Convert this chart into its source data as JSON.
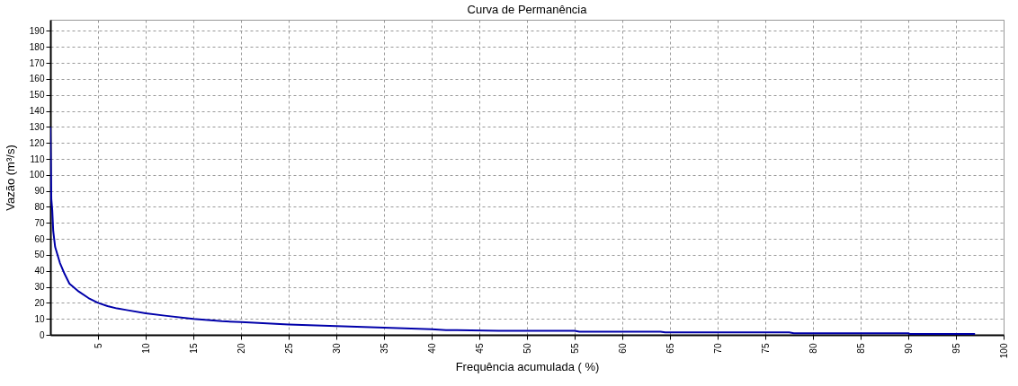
{
  "chart_data": {
    "type": "line",
    "title": "Curva de Permanência",
    "xlabel": "Frequência acumulada ( %)",
    "ylabel": "Vazão (m³/s)",
    "series": [
      {
        "color": "#0000aa",
        "x": [
          0,
          0.1,
          0.2,
          0.3,
          0.5,
          1,
          1.5,
          2,
          3,
          4,
          5,
          6,
          7,
          8,
          10,
          12,
          15,
          18,
          20,
          25,
          30,
          35,
          40,
          41.5,
          47,
          55,
          55.5,
          64,
          64.5,
          77.5,
          78,
          90,
          90.2,
          97
        ],
        "values": [
          130,
          85,
          78,
          65,
          55,
          45,
          38,
          32,
          27,
          23,
          20,
          18,
          16.5,
          15.5,
          13.5,
          12,
          10,
          8.5,
          8,
          6.5,
          5.5,
          4.5,
          3.5,
          3,
          2.5,
          2.5,
          2,
          2,
          1.5,
          1.5,
          1,
          1,
          0.5,
          0.5
        ]
      }
    ],
    "xlim": [
      0,
      100
    ],
    "ylim": [
      0,
      197
    ],
    "xticks": [
      5,
      10,
      15,
      20,
      25,
      30,
      35,
      40,
      45,
      50,
      55,
      60,
      65,
      70,
      75,
      80,
      85,
      90,
      95,
      100
    ],
    "yticks": [
      0,
      10,
      20,
      30,
      40,
      50,
      60,
      70,
      80,
      90,
      100,
      110,
      120,
      130,
      140,
      150,
      160,
      170,
      180,
      190
    ],
    "grid": true,
    "marker": "none",
    "line_style": "solid"
  }
}
